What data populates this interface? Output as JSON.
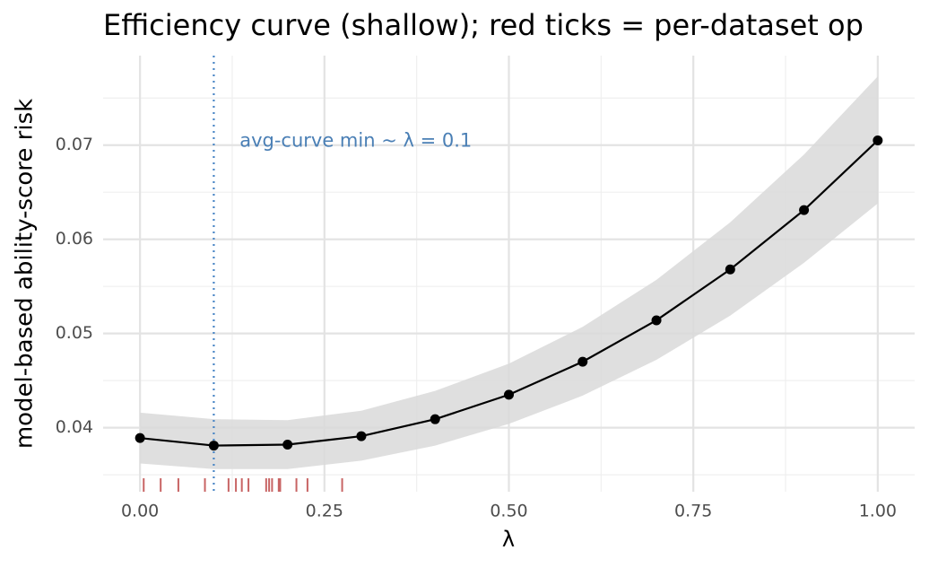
{
  "chart_data": {
    "type": "line",
    "title": "Efficiency curve (shallow); red ticks = per-dataset op",
    "x_label": "λ",
    "y_label": "model-based ability-score risk",
    "xlim": [
      -0.05,
      1.05
    ],
    "ylim": [
      0.0332,
      0.0795
    ],
    "xticks": [
      {
        "value": 0,
        "label": "0.00"
      },
      0.25,
      {
        "value": 0.5,
        "label": "0.50"
      },
      0.75,
      {
        "value": 1,
        "label": "1.00"
      }
    ],
    "yticks": [
      0.04,
      0.05,
      0.06,
      0.07
    ],
    "xminor": [
      0.125,
      0.375,
      0.625,
      0.875
    ],
    "yminor": [
      0.035,
      0.045,
      0.055,
      0.065,
      0.075
    ],
    "grid": true,
    "x": [
      0,
      0.1,
      0.2,
      0.3,
      0.4,
      0.5,
      0.6,
      0.7,
      0.8,
      0.9,
      1.0
    ],
    "series": [
      {
        "name": "risk",
        "color": "#000000",
        "values": [
          0.0389,
          0.0381,
          0.0382,
          0.0391,
          0.0409,
          0.0435,
          0.047,
          0.0514,
          0.0568,
          0.0631,
          0.0705
        ]
      }
    ],
    "band": {
      "color": "#d9d9d9",
      "upper": [
        0.0416,
        0.0409,
        0.0408,
        0.0418,
        0.0439,
        0.0468,
        0.0507,
        0.0557,
        0.0618,
        0.069,
        0.0773
      ],
      "lower": [
        0.0362,
        0.0356,
        0.0356,
        0.0365,
        0.0381,
        0.0404,
        0.0434,
        0.0472,
        0.0519,
        0.0575,
        0.0638
      ]
    },
    "vline": {
      "x": 0.1,
      "color": "#4a86c5"
    },
    "annotation": {
      "text": "avg-curve min ~ λ = 0.1",
      "x": 0.135,
      "y": 0.0704,
      "color": "#4a7fb5"
    },
    "rug": {
      "color": "#c86464",
      "x": [
        0.005,
        0.028,
        0.052,
        0.088,
        0.12,
        0.13,
        0.138,
        0.147,
        0.171,
        0.175,
        0.179,
        0.188,
        0.19,
        0.212,
        0.227,
        0.274
      ]
    }
  }
}
